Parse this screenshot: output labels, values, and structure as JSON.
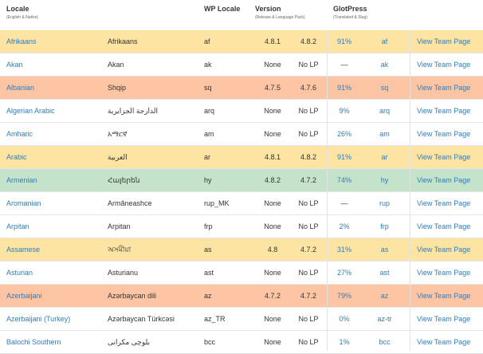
{
  "header": {
    "locale": "Locale",
    "locale_sub": "(English & Native)",
    "wp_locale": "WP Locale",
    "version": "Version",
    "version_sub": "(Release & Language Pack)",
    "glotpress": "GlotPress",
    "glotpress_sub": "(Translated & Slug)"
  },
  "colors": {
    "yellow": "#fde4a2",
    "orange": "#fdc5a3",
    "green": "#c4e3ca",
    "link": "#2e7cc0"
  },
  "rows": [
    {
      "english": "Afrikaans",
      "native": "Afrikaans",
      "wp_locale": "af",
      "release": "4.8.1",
      "lang_pack": "4.8.2",
      "percent": "91%",
      "slug": "af",
      "team": "View Team Page",
      "status": "yellow"
    },
    {
      "english": "Akan",
      "native": "Akan",
      "wp_locale": "ak",
      "release": "None",
      "lang_pack": "No LP",
      "percent": "—",
      "slug": "ak",
      "team": "View Team Page",
      "status": "white"
    },
    {
      "english": "Albanian",
      "native": "Shqip",
      "wp_locale": "sq",
      "release": "4.7.5",
      "lang_pack": "4.7.6",
      "percent": "91%",
      "slug": "sq",
      "team": "View Team Page",
      "status": "orange"
    },
    {
      "english": "Algerian Arabic",
      "native": "الدارجة الجزايرية",
      "wp_locale": "arq",
      "release": "None",
      "lang_pack": "No LP",
      "percent": "9%",
      "slug": "arq",
      "team": "View Team Page",
      "status": "white"
    },
    {
      "english": "Amharic",
      "native": "አማርኛ",
      "wp_locale": "am",
      "release": "None",
      "lang_pack": "No LP",
      "percent": "26%",
      "slug": "am",
      "team": "View Team Page",
      "status": "white"
    },
    {
      "english": "Arabic",
      "native": "العربية",
      "wp_locale": "ar",
      "release": "4.8.1",
      "lang_pack": "4.8.2",
      "percent": "91%",
      "slug": "ar",
      "team": "View Team Page",
      "status": "yellow"
    },
    {
      "english": "Armenian",
      "native": "Հայերեն",
      "wp_locale": "hy",
      "release": "4.8.2",
      "lang_pack": "4.7.2",
      "percent": "74%",
      "slug": "hy",
      "team": "View Team Page",
      "status": "green"
    },
    {
      "english": "Aromanian",
      "native": "Armãneashce",
      "wp_locale": "rup_MK",
      "release": "None",
      "lang_pack": "No LP",
      "percent": "—",
      "slug": "rup",
      "team": "View Team Page",
      "status": "white"
    },
    {
      "english": "Arpitan",
      "native": "Arpitan",
      "wp_locale": "frp",
      "release": "None",
      "lang_pack": "No LP",
      "percent": "2%",
      "slug": "frp",
      "team": "View Team Page",
      "status": "white"
    },
    {
      "english": "Assamese",
      "native": "অসমীয়া",
      "wp_locale": "as",
      "release": "4.8",
      "lang_pack": "4.7.2",
      "percent": "31%",
      "slug": "as",
      "team": "View Team Page",
      "status": "yellow"
    },
    {
      "english": "Asturian",
      "native": "Asturianu",
      "wp_locale": "ast",
      "release": "None",
      "lang_pack": "No LP",
      "percent": "27%",
      "slug": "ast",
      "team": "View Team Page",
      "status": "white"
    },
    {
      "english": "Azerbaijani",
      "native": "Azərbaycan dili",
      "wp_locale": "az",
      "release": "4.7.2",
      "lang_pack": "4.7.2",
      "percent": "79%",
      "slug": "az",
      "team": "View Team Page",
      "status": "orange"
    },
    {
      "english": "Azerbaijani (Turkey)",
      "native": "Azərbaycan Türkcəsi",
      "wp_locale": "az_TR",
      "release": "None",
      "lang_pack": "No LP",
      "percent": "0%",
      "slug": "az-tr",
      "team": "View Team Page",
      "status": "white"
    },
    {
      "english": "Balochi Southern",
      "native": "بلوچی مکرانی",
      "wp_locale": "bcc",
      "release": "None",
      "lang_pack": "No LP",
      "percent": "1%",
      "slug": "bcc",
      "team": "View Team Page",
      "status": "white"
    }
  ]
}
